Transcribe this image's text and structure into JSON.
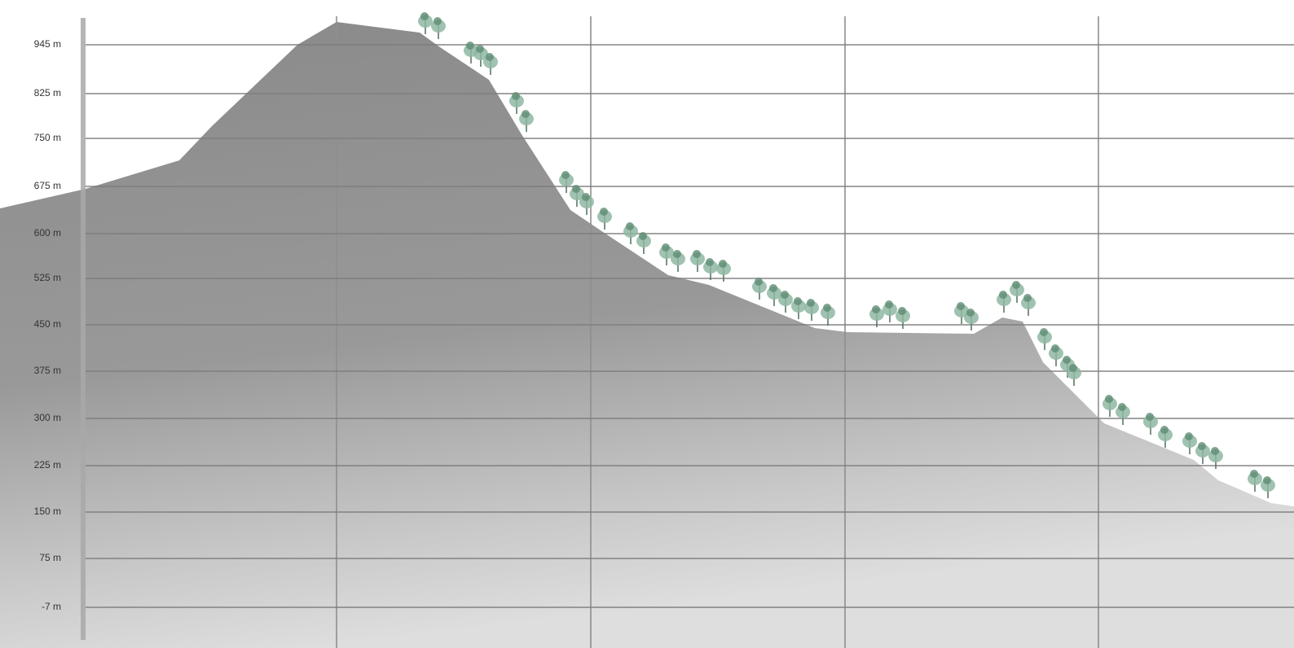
{
  "elevation_labels": [
    "945 m",
    "825 m",
    "750 m",
    "675 m",
    "600 m",
    "525 m",
    "450 m",
    "375 m",
    "300 m",
    "225 m",
    "150 m",
    "75 m",
    "-7 m"
  ]
}
